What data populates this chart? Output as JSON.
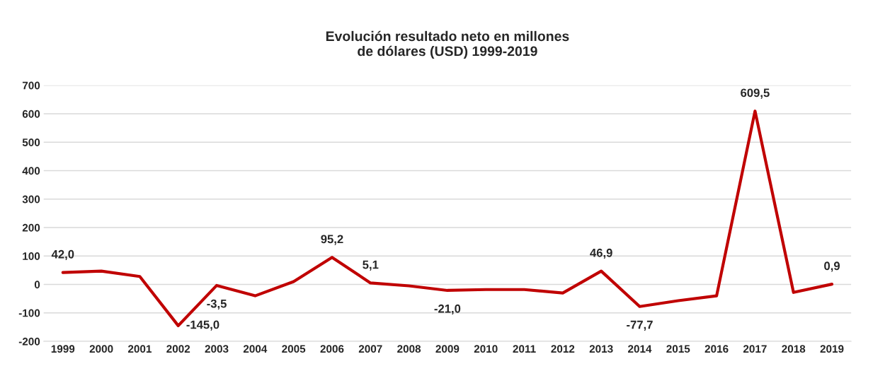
{
  "chart_data": {
    "type": "line",
    "title": "Evolución resultado neto en millones\nde dólares (USD) 1999-2019",
    "categories": [
      "1999",
      "2000",
      "2001",
      "2002",
      "2003",
      "2004",
      "2005",
      "2006",
      "2007",
      "2008",
      "2009",
      "2010",
      "2011",
      "2012",
      "2013",
      "2014",
      "2015",
      "2016",
      "2017",
      "2018",
      "2019"
    ],
    "series": [
      {
        "color": "#c00000",
        "values": [
          42.0,
          47,
          28,
          -145.0,
          -3.5,
          -40,
          10,
          95.2,
          5.1,
          -5,
          -21.0,
          -18,
          -18,
          -30,
          46.9,
          -77.7,
          -57,
          -40,
          609.5,
          -28,
          0.9
        ],
        "value_labels": [
          "42,0",
          null,
          null,
          "-145,0",
          "-3,5",
          null,
          null,
          "95,2",
          "5,1",
          null,
          "-21,0",
          null,
          null,
          null,
          "46,9",
          "-77,7",
          null,
          null,
          "609,5",
          null,
          "0,9"
        ]
      }
    ],
    "ylim": [
      -200,
      700
    ],
    "yticks": [
      -200,
      -100,
      0,
      100,
      200,
      300,
      400,
      500,
      600,
      700
    ],
    "grid": "y",
    "marker": "none",
    "line_style": "solid",
    "legend": false
  }
}
